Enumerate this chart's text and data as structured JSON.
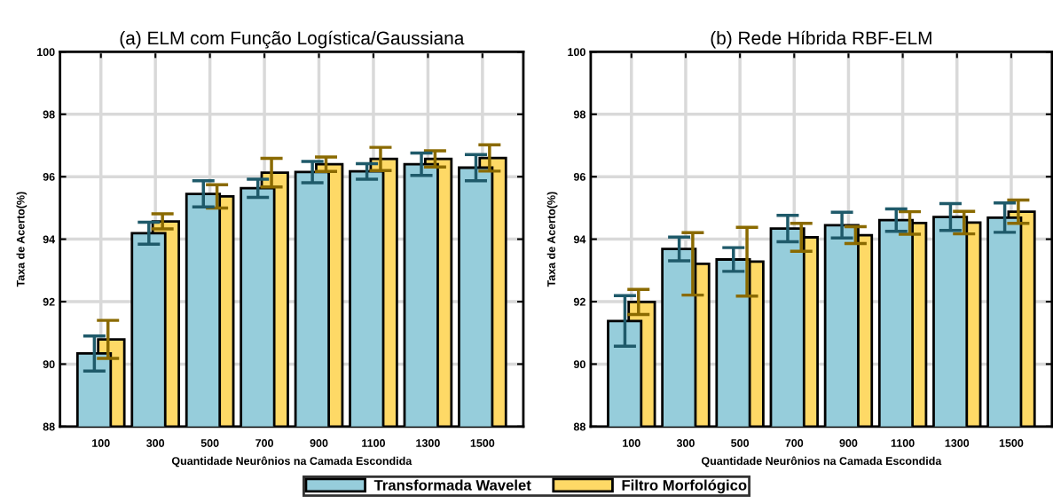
{
  "chart_data": [
    {
      "type": "bar",
      "title": "(a) ELM com Função Logística/Gaussiana",
      "xlabel": "Quantidade Neurônios na Camada Escondida",
      "ylabel": "Taxa de Acerto(%)",
      "categories": [
        "100",
        "300",
        "500",
        "700",
        "900",
        "1100",
        "1300",
        "1500"
      ],
      "series": [
        {
          "name": "Transformada Wavelet",
          "color": "#96cddb",
          "values": [
            90.34,
            94.19,
            95.45,
            95.63,
            96.15,
            96.17,
            96.4,
            96.29
          ],
          "errors": [
            0.56,
            0.35,
            0.42,
            0.29,
            0.34,
            0.25,
            0.36,
            0.42
          ]
        },
        {
          "name": "Filtro Morfológico",
          "color": "#fed966",
          "values": [
            90.79,
            94.57,
            95.37,
            96.13,
            96.4,
            96.57,
            96.57,
            96.6
          ],
          "errors": [
            0.61,
            0.24,
            0.37,
            0.46,
            0.23,
            0.37,
            0.26,
            0.42
          ]
        }
      ],
      "ylim": [
        88,
        100
      ],
      "yticks": [
        88,
        90,
        92,
        94,
        96,
        98,
        100
      ],
      "grid": true,
      "legend": "bottom"
    },
    {
      "type": "bar",
      "title": "(b) Rede Híbrida RBF-ELM",
      "xlabel": "Quantidade Neurônios na Camada Escondida",
      "ylabel": "Taxa de Acerto(%)",
      "categories": [
        "100",
        "300",
        "500",
        "700",
        "900",
        "1100",
        "1300",
        "1500"
      ],
      "series": [
        {
          "color": "#96cddb",
          "values": [
            91.38,
            93.69,
            93.35,
            94.34,
            94.45,
            94.61,
            94.71,
            94.69
          ],
          "errors": [
            0.81,
            0.38,
            0.38,
            0.42,
            0.41,
            0.36,
            0.43,
            0.47
          ]
        },
        {
          "color": "#fed966",
          "values": [
            91.99,
            93.21,
            93.28,
            94.06,
            94.13,
            94.52,
            94.53,
            94.88
          ],
          "errors": [
            0.4,
            1.0,
            1.1,
            0.45,
            0.27,
            0.36,
            0.36,
            0.37
          ]
        }
      ],
      "ylim": [
        88,
        100
      ],
      "yticks": [
        88,
        90,
        92,
        94,
        96,
        98,
        100
      ],
      "grid": true
    }
  ]
}
